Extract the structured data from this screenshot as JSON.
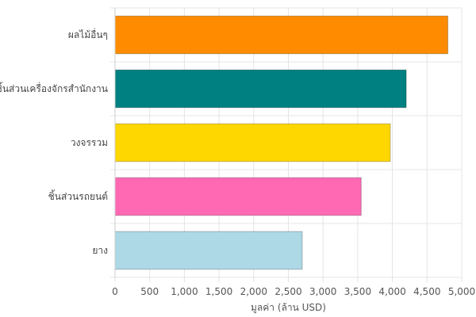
{
  "chart_data": {
    "type": "bar",
    "orientation": "horizontal",
    "categories": [
      "ผลไม้อื่นๆ",
      "ชิ้นส่วนเครื่องจักรสำนักงาน",
      "วงจรรวม",
      "ชิ้นส่วนรถยนต์",
      "ยาง"
    ],
    "values": [
      4800,
      4200,
      3970,
      3550,
      2700
    ],
    "colors": [
      "#FF8C00",
      "#008080",
      "#FFD700",
      "#FF69B4",
      "#ADD8E6"
    ],
    "xlim": [
      0,
      5000
    ],
    "xticks": [
      0,
      500,
      1000,
      1500,
      2000,
      2500,
      3000,
      3500,
      4000,
      4500,
      5000
    ],
    "xtick_labels": [
      "0",
      "500",
      "1,000",
      "1,500",
      "2,000",
      "2,500",
      "3,000",
      "3,500",
      "4,000",
      "4,500",
      "5,000"
    ],
    "xlabel": "มูลค่า (ล้าน USD)",
    "ylabel": "",
    "title": "",
    "grid": true,
    "legend": "none"
  }
}
